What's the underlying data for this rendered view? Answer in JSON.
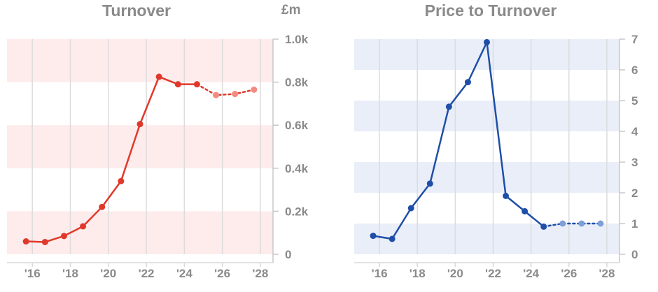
{
  "chart_data": [
    {
      "type": "line",
      "title": "Turnover",
      "unit": "£m",
      "x": [
        "2015-09",
        "2016-09",
        "2017-09",
        "2018-09",
        "2019-09",
        "2020-09",
        "2021-09",
        "2022-09",
        "2023-09",
        "2024-09",
        "2025-09",
        "2026-09",
        "2027-09"
      ],
      "values": [
        60,
        57,
        85,
        130,
        220,
        340,
        605,
        825,
        790,
        790,
        740,
        745,
        765
      ],
      "forecast_from_index": 9,
      "ylim": [
        0,
        1000
      ],
      "yticks": [
        0,
        200,
        400,
        600,
        800,
        1000
      ],
      "ytick_labels": [
        "0",
        "0.2k",
        "0.4k",
        "0.6k",
        "0.8k",
        "1.0k"
      ],
      "xticks": [
        2016,
        2018,
        2020,
        2022,
        2024,
        2026,
        2028
      ],
      "xtick_labels": [
        "'16",
        "'18",
        "'20",
        "'22",
        "'24",
        "'26",
        "'28"
      ],
      "xlim": [
        "2014-09",
        "2028-09"
      ],
      "color": "#e0382a",
      "forecast_color": "#f28b80",
      "band_color": "#fdeceb",
      "grid": true
    },
    {
      "type": "line",
      "title": "Price to Turnover",
      "unit": "",
      "x": [
        "2015-09",
        "2016-09",
        "2017-09",
        "2018-09",
        "2019-09",
        "2020-09",
        "2021-09",
        "2022-09",
        "2023-09",
        "2024-09",
        "2025-09",
        "2026-09",
        "2027-09"
      ],
      "values": [
        0.6,
        0.5,
        1.5,
        2.3,
        4.8,
        5.6,
        6.9,
        1.9,
        1.4,
        0.9,
        1.0,
        1.0,
        1.0
      ],
      "forecast_from_index": 9,
      "ylim": [
        0,
        7
      ],
      "yticks": [
        0,
        1,
        2,
        3,
        4,
        5,
        6,
        7
      ],
      "ytick_labels": [
        "0",
        "1",
        "2",
        "3",
        "4",
        "5",
        "6",
        "7"
      ],
      "xticks": [
        2016,
        2018,
        2020,
        2022,
        2024,
        2026,
        2028
      ],
      "xtick_labels": [
        "'16",
        "'18",
        "'20",
        "'22",
        "'24",
        "'26",
        "'28"
      ],
      "xlim": [
        "2014-09",
        "2028-09"
      ],
      "color": "#1f4ea8",
      "forecast_color": "#7f9fd8",
      "band_color": "#e9eef8",
      "grid": true
    }
  ]
}
